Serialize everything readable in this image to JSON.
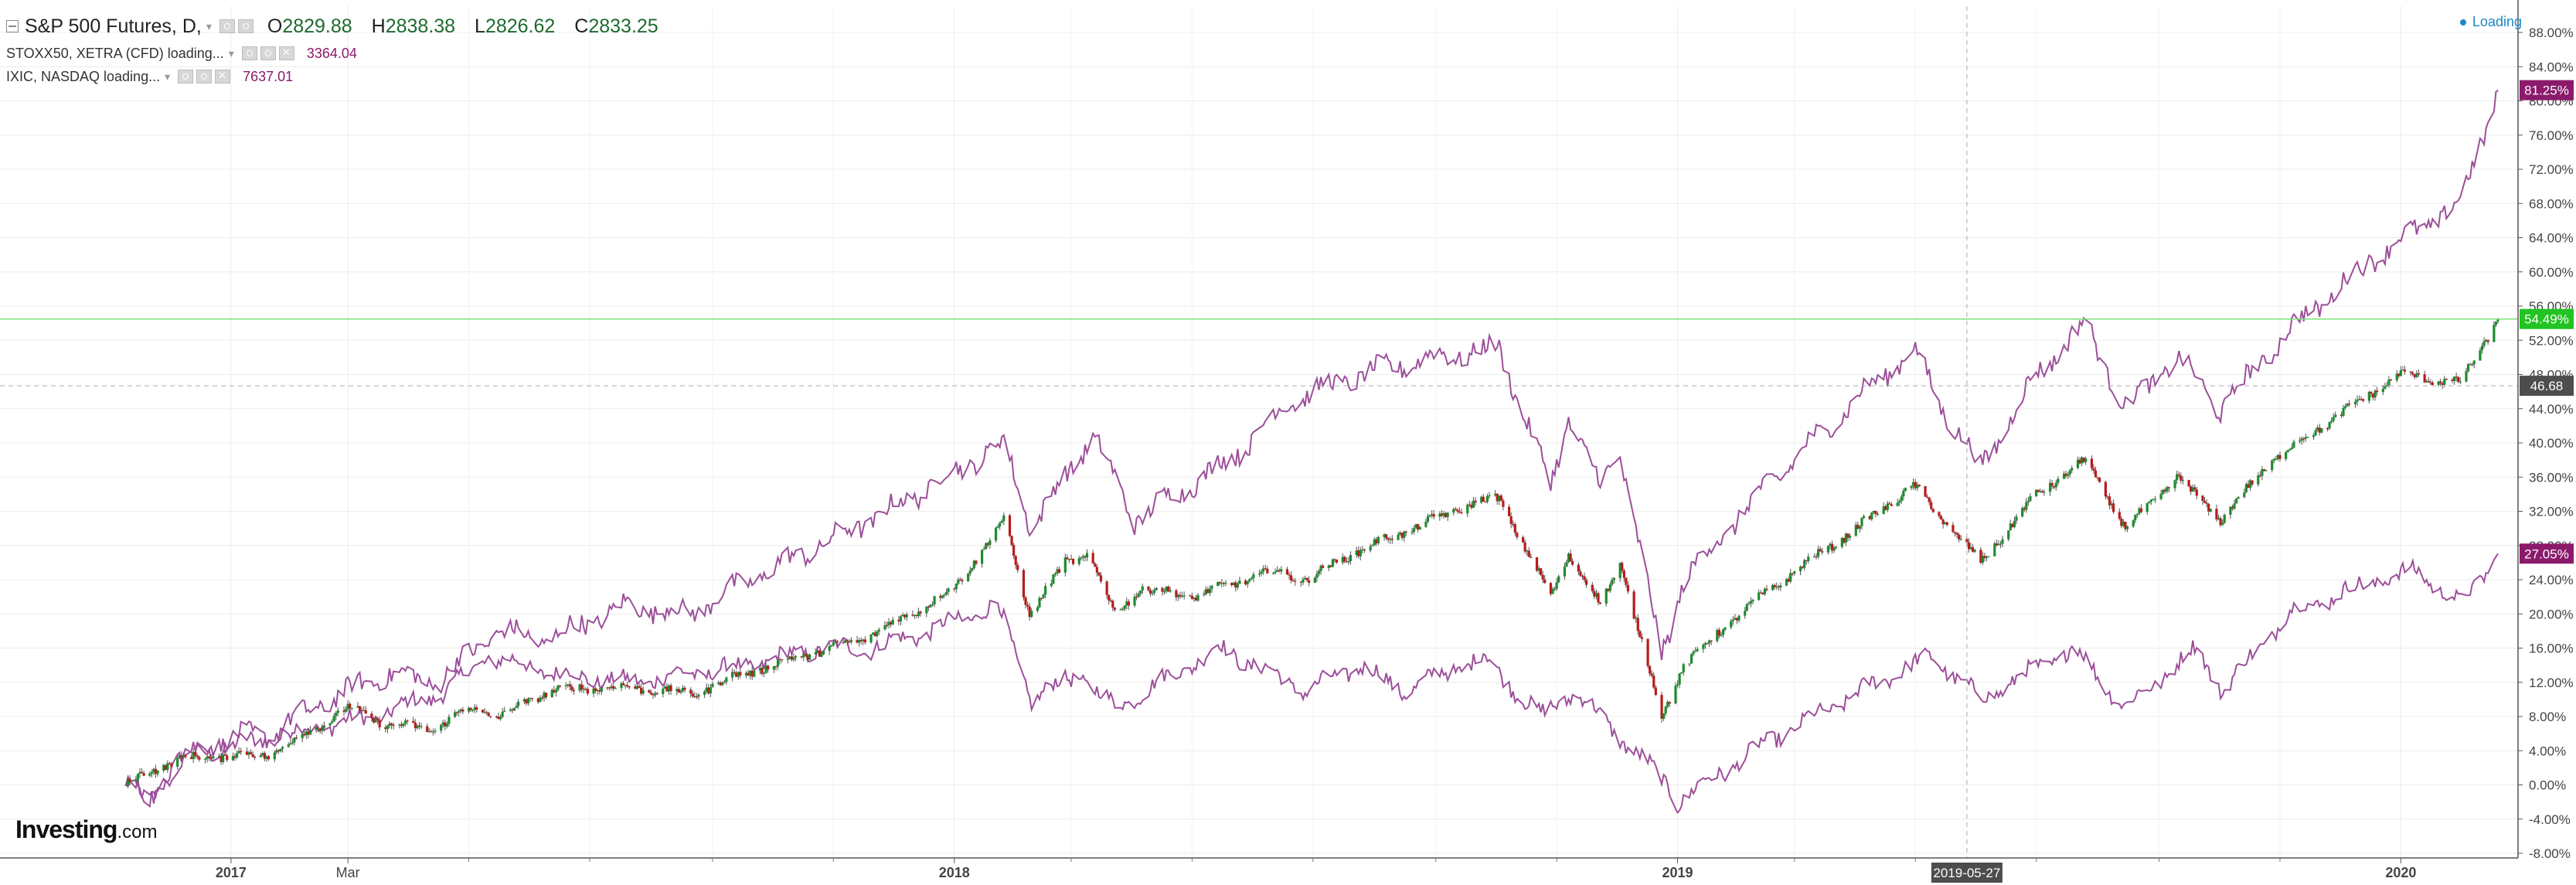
{
  "legend": {
    "main": {
      "title": "S&P 500 Futures, D,",
      "open_label": "O",
      "open": "2829.88",
      "high_label": "H",
      "high": "2838.38",
      "low_label": "L",
      "low": "2826.62",
      "close_label": "C",
      "close": "2833.25"
    },
    "compare1": {
      "name": "STOXX50, XETRA (CFD) loading...",
      "value": "3364.04"
    },
    "compare2": {
      "name": "IXIC, NASDAQ loading...",
      "value": "7637.01"
    }
  },
  "status": {
    "loading": "Loading"
  },
  "logo": {
    "brand": "Investing",
    "suffix": ".com"
  },
  "colors": {
    "candle_up": "#1e8b2f",
    "candle_down": "#b71c1c",
    "compare_line": "#9c4f9a",
    "green_label": "#22c322",
    "purple_label": "#8b1a6b",
    "crosshair_label": "#4d4d4d"
  },
  "chart_data": {
    "type": "candlestick",
    "y_axis": {
      "unit": "%",
      "range": [
        -8,
        90
      ],
      "ticks": [
        "88.00%",
        "84.00%",
        "80.00%",
        "76.00%",
        "72.00%",
        "68.00%",
        "64.00%",
        "60.00%",
        "56.00%",
        "52.00%",
        "48.00%",
        "44.00%",
        "40.00%",
        "36.00%",
        "32.00%",
        "28.00%",
        "24.00%",
        "20.00%",
        "16.00%",
        "12.00%",
        "8.00%",
        "4.00%",
        "0.00%",
        "-4.00%",
        "-8.00%"
      ],
      "tick_values": [
        88,
        84,
        80,
        76,
        72,
        68,
        64,
        60,
        56,
        52,
        48,
        44,
        40,
        36,
        32,
        28,
        24,
        20,
        16,
        12,
        8,
        4,
        0,
        -4,
        -8
      ]
    },
    "x_axis": {
      "range": [
        "2016-11-09",
        "2020-02-19"
      ],
      "labels": [
        {
          "date": "2017-01-01",
          "text": "2017"
        },
        {
          "date": "2017-03-01",
          "text": "Mar"
        },
        {
          "date": "2018-01-01",
          "text": "2018"
        },
        {
          "date": "2019-01-01",
          "text": "2019"
        },
        {
          "date": "2020-01-01",
          "text": "2020"
        }
      ],
      "minor_ticks": [
        "2017-05-01",
        "2017-07-01",
        "2017-09-01",
        "2017-11-01",
        "2018-03-01",
        "2018-05-01",
        "2018-07-01",
        "2018-09-01",
        "2018-11-01",
        "2019-03-01",
        "2019-05-01",
        "2019-07-01",
        "2019-09-01",
        "2019-11-01",
        "2020-03-01"
      ],
      "crosshair_label": "2019-05-27"
    },
    "grid": true,
    "crosshair": {
      "date": "2019-05-27",
      "value": 46.68,
      "label": "46.68"
    },
    "price_line": {
      "value": 54.49,
      "label": "54.49%"
    },
    "series": [
      {
        "name": "S&P 500 Futures, D,",
        "kind": "candles",
        "last_label": "54.49%",
        "anchors": [
          [
            "2016-11-09",
            0
          ],
          [
            "2016-11-20",
            1.5
          ],
          [
            "2016-12-05",
            3
          ],
          [
            "2017-01-03",
            3.5
          ],
          [
            "2017-01-20",
            3.5
          ],
          [
            "2017-02-15",
            7
          ],
          [
            "2017-03-01",
            9
          ],
          [
            "2017-03-22",
            7
          ],
          [
            "2017-04-13",
            6.5
          ],
          [
            "2017-05-01",
            9
          ],
          [
            "2017-05-17",
            8
          ],
          [
            "2017-06-10",
            11
          ],
          [
            "2017-07-10",
            11.5
          ],
          [
            "2017-08-10",
            11
          ],
          [
            "2017-08-21",
            10.5
          ],
          [
            "2017-09-10",
            12.5
          ],
          [
            "2017-10-15",
            15
          ],
          [
            "2017-11-15",
            17
          ],
          [
            "2017-12-10",
            20
          ],
          [
            "2018-01-01",
            23
          ],
          [
            "2018-01-26",
            31
          ],
          [
            "2018-02-08",
            20
          ],
          [
            "2018-02-26",
            26
          ],
          [
            "2018-03-10",
            27
          ],
          [
            "2018-03-23",
            20
          ],
          [
            "2018-04-05",
            23
          ],
          [
            "2018-05-01",
            22
          ],
          [
            "2018-06-10",
            25
          ],
          [
            "2018-06-28",
            24
          ],
          [
            "2018-07-20",
            27
          ],
          [
            "2018-08-20",
            30
          ],
          [
            "2018-09-20",
            33
          ],
          [
            "2018-10-03",
            33.5
          ],
          [
            "2018-10-29",
            22
          ],
          [
            "2018-11-07",
            27
          ],
          [
            "2018-11-23",
            21
          ],
          [
            "2018-12-03",
            26
          ],
          [
            "2018-12-24",
            8
          ],
          [
            "2019-01-04",
            14
          ],
          [
            "2019-02-01",
            20
          ],
          [
            "2019-03-01",
            25
          ],
          [
            "2019-04-01",
            30
          ],
          [
            "2019-04-30",
            35
          ],
          [
            "2019-05-15",
            31
          ],
          [
            "2019-06-03",
            26
          ],
          [
            "2019-07-01",
            34
          ],
          [
            "2019-07-26",
            38
          ],
          [
            "2019-08-15",
            30
          ],
          [
            "2019-09-10",
            36
          ],
          [
            "2019-10-02",
            31
          ],
          [
            "2019-10-28",
            38
          ],
          [
            "2019-11-29",
            43
          ],
          [
            "2019-12-31",
            48
          ],
          [
            "2020-01-31",
            47
          ],
          [
            "2020-02-19",
            54.49
          ]
        ]
      },
      {
        "name": "STOXX50, XETRA (CFD) loading...",
        "kind": "line",
        "last_label": "27.05%",
        "anchors": [
          [
            "2016-11-09",
            0
          ],
          [
            "2016-11-20",
            -2
          ],
          [
            "2016-12-05",
            3
          ],
          [
            "2017-01-10",
            5
          ],
          [
            "2017-02-20",
            7
          ],
          [
            "2017-03-15",
            8
          ],
          [
            "2017-04-20",
            11
          ],
          [
            "2017-05-10",
            15
          ],
          [
            "2017-06-15",
            13
          ],
          [
            "2017-07-20",
            12
          ],
          [
            "2017-08-20",
            13
          ],
          [
            "2017-09-20",
            14
          ],
          [
            "2017-10-25",
            16
          ],
          [
            "2017-11-20",
            16
          ],
          [
            "2017-12-20",
            18
          ],
          [
            "2018-01-23",
            21
          ],
          [
            "2018-02-09",
            10
          ],
          [
            "2018-03-05",
            13
          ],
          [
            "2018-03-23",
            9
          ],
          [
            "2018-05-15",
            16
          ],
          [
            "2018-06-28",
            11
          ],
          [
            "2018-07-25",
            14
          ],
          [
            "2018-08-15",
            11
          ],
          [
            "2018-09-25",
            15
          ],
          [
            "2018-10-24",
            8
          ],
          [
            "2018-11-10",
            11
          ],
          [
            "2018-12-27",
            0
          ],
          [
            "2019-01-01",
            -2
          ],
          [
            "2019-02-15",
            5
          ],
          [
            "2019-04-20",
            13
          ],
          [
            "2019-05-10",
            15
          ],
          [
            "2019-06-03",
            10
          ],
          [
            "2019-07-20",
            16
          ],
          [
            "2019-08-15",
            9
          ],
          [
            "2019-09-20",
            16
          ],
          [
            "2019-10-03",
            11
          ],
          [
            "2019-11-05",
            20
          ],
          [
            "2019-12-20",
            24
          ],
          [
            "2020-01-10",
            25
          ],
          [
            "2020-01-31",
            21
          ],
          [
            "2020-02-19",
            27.05
          ]
        ]
      },
      {
        "name": "IXIC, NASDAQ loading...",
        "kind": "line",
        "last_label": "81.25%",
        "anchors": [
          [
            "2016-11-09",
            0
          ],
          [
            "2016-11-20",
            -2
          ],
          [
            "2016-12-01",
            1.5
          ],
          [
            "2016-12-20",
            5
          ],
          [
            "2017-01-20",
            6
          ],
          [
            "2017-02-20",
            10
          ],
          [
            "2017-03-20",
            13
          ],
          [
            "2017-04-15",
            12
          ],
          [
            "2017-05-15",
            18
          ],
          [
            "2017-06-09",
            17
          ],
          [
            "2017-07-20",
            21
          ],
          [
            "2017-08-20",
            20
          ],
          [
            "2017-09-20",
            24
          ],
          [
            "2017-10-25",
            28
          ],
          [
            "2017-11-28",
            32
          ],
          [
            "2017-12-20",
            35
          ],
          [
            "2018-01-26",
            40
          ],
          [
            "2018-02-09",
            30
          ],
          [
            "2018-03-12",
            41
          ],
          [
            "2018-04-02",
            31
          ],
          [
            "2018-05-20",
            38
          ],
          [
            "2018-06-20",
            45
          ],
          [
            "2018-07-25",
            48
          ],
          [
            "2018-08-31",
            50
          ],
          [
            "2018-10-03",
            51
          ],
          [
            "2018-10-29",
            35
          ],
          [
            "2018-11-07",
            43
          ],
          [
            "2018-11-23",
            35
          ],
          [
            "2018-12-03",
            39
          ],
          [
            "2018-12-24",
            15
          ],
          [
            "2019-01-04",
            24
          ],
          [
            "2019-02-15",
            35
          ],
          [
            "2019-04-01",
            45
          ],
          [
            "2019-04-30",
            51
          ],
          [
            "2019-05-15",
            44
          ],
          [
            "2019-06-03",
            37
          ],
          [
            "2019-07-01",
            48
          ],
          [
            "2019-07-26",
            54
          ],
          [
            "2019-08-15",
            44
          ],
          [
            "2019-09-10",
            50
          ],
          [
            "2019-10-02",
            44
          ],
          [
            "2019-11-05",
            53
          ],
          [
            "2019-12-20",
            62
          ],
          [
            "2020-01-31",
            68
          ],
          [
            "2020-02-19",
            81.25
          ]
        ]
      }
    ]
  }
}
